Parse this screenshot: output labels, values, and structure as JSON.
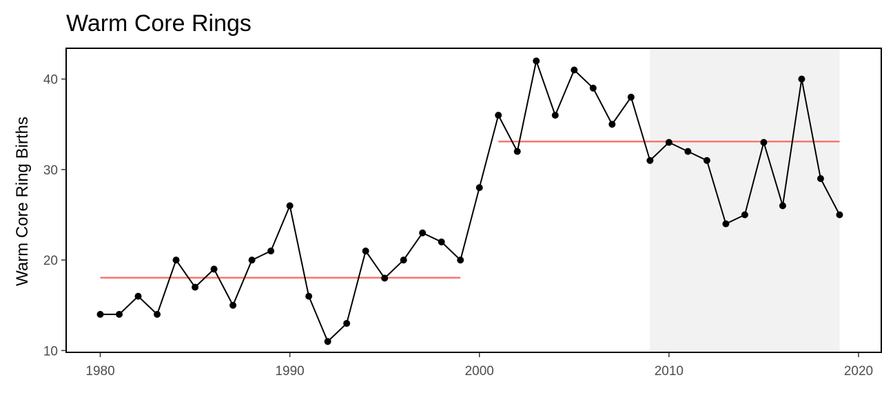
{
  "chart_data": {
    "type": "line",
    "title": "Warm Core Rings",
    "xlabel": "",
    "ylabel": "Warm Core Ring Births",
    "xlim": [
      1978.2,
      2021.2
    ],
    "ylim": [
      9.8,
      43.4
    ],
    "xticks": [
      1980,
      1990,
      2000,
      2010,
      2020
    ],
    "yticks": [
      10,
      20,
      30,
      40
    ],
    "grid": false,
    "series": [
      {
        "x": [
          1980,
          1981,
          1982,
          1983,
          1984,
          1985,
          1986,
          1987,
          1988,
          1989,
          1990,
          1991,
          1992,
          1993,
          1994,
          1995,
          1996,
          1997,
          1998,
          1999,
          2000,
          2001,
          2002,
          2003,
          2004,
          2005,
          2006,
          2007,
          2008,
          2009,
          2010,
          2011,
          2012,
          2013,
          2014,
          2015,
          2016,
          2017,
          2018,
          2019
        ],
        "values": [
          14,
          14,
          16,
          14,
          20,
          17,
          19,
          15,
          20,
          21,
          26,
          16,
          11,
          13,
          21,
          18,
          20,
          23,
          22,
          20,
          28,
          36,
          32,
          42,
          36,
          41,
          39,
          35,
          38,
          31,
          33,
          32,
          31,
          24,
          25,
          33,
          26,
          40,
          29,
          25
        ],
        "color": "#000000"
      }
    ],
    "reference_lines": [
      {
        "x_start": 1980,
        "x_end": 1999,
        "y": 18.05,
        "color": "#f8766d"
      },
      {
        "x_start": 2001,
        "x_end": 2019,
        "y": 33.1,
        "color": "#f8766d"
      }
    ],
    "highlight_region": {
      "x_start": 2009,
      "x_end": 2019,
      "color": "#f2f2f2"
    }
  }
}
